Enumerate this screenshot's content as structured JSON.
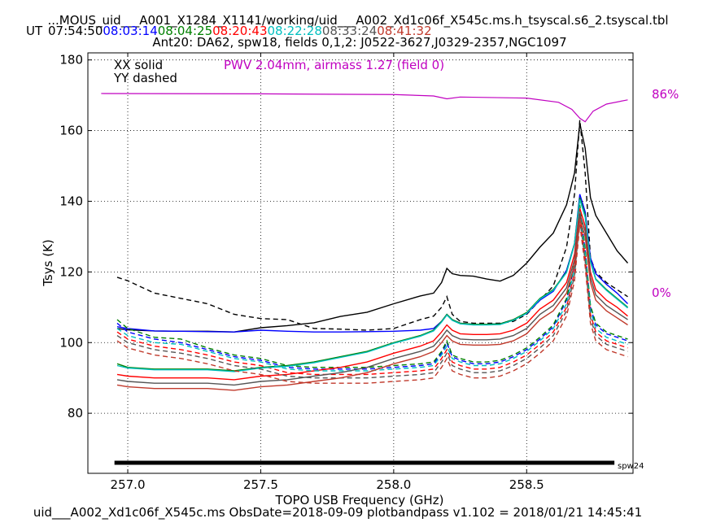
{
  "header": {
    "title": "...MOUS_uid___A001_X1284_X1141/working/uid___A002_Xd1c06f_X545c.ms.h_tsyscal.s6_2.tsyscal.tbl",
    "ut_label": "UT",
    "times": [
      {
        "text": "07:54:50",
        "color": "#000000"
      },
      {
        "text": "08:03:14",
        "color": "#0000ff"
      },
      {
        "text": "08:04:25",
        "color": "#008000"
      },
      {
        "text": "08:20:43",
        "color": "#ff0000"
      },
      {
        "text": "08:22:28",
        "color": "#00bfbf"
      },
      {
        "text": "08:33:24",
        "color": "#555555"
      },
      {
        "text": "08:41:32",
        "color": "#c0392b"
      }
    ],
    "subtitle": "Ant20: DA62,  spw18,  fields 0,1,2: J0522-3627,J0329-2357,NGC1097"
  },
  "footer": "uid___A002_Xd1c06f_X545c.ms  ObsDate=2018-09-09   plotbandpass v1.102 = 2018/01/21 14:45:41",
  "chart_data": {
    "type": "line",
    "xlabel": "TOPO USB Frequency (GHz)",
    "ylabel": "Tsys (K)",
    "xlim": [
      256.85,
      258.9
    ],
    "ylim": [
      63,
      182
    ],
    "xticks": [
      257.0,
      257.5,
      258.0,
      258.5
    ],
    "xtick_labels": [
      "257.0",
      "257.5",
      "258.0",
      "258.5"
    ],
    "yticks": [
      80,
      100,
      120,
      140,
      160,
      180
    ],
    "ytick_labels": [
      "80",
      "100",
      "120",
      "140",
      "160",
      "180"
    ],
    "grid": true,
    "legend": {
      "solid": "XX solid",
      "dashed": "YY dashed"
    },
    "pwv": {
      "label": "PWV 2.04mm, airmass 1.27 (field 0)",
      "color": "#c000c0",
      "right_labels": [
        "86%",
        "0%"
      ],
      "x": [
        256.9,
        257.5,
        258.0,
        258.15,
        258.2,
        258.25,
        258.5,
        258.62,
        258.67,
        258.7,
        258.72,
        258.75,
        258.8,
        258.88
      ],
      "y": [
        170.5,
        170.4,
        170.2,
        169.8,
        169.0,
        169.5,
        169.2,
        168.0,
        166.0,
        163.5,
        162.5,
        165.5,
        167.5,
        168.7
      ]
    },
    "spw_bar": {
      "label": "spw24",
      "x_start": 256.95,
      "x_end": 258.83,
      "y": 66.0
    },
    "x": [
      256.96,
      257.0,
      257.1,
      257.2,
      257.3,
      257.4,
      257.5,
      257.6,
      257.7,
      257.8,
      257.9,
      258.0,
      258.1,
      258.15,
      258.18,
      258.2,
      258.22,
      258.25,
      258.3,
      258.35,
      258.4,
      258.45,
      258.5,
      258.55,
      258.6,
      258.65,
      258.68,
      258.7,
      258.72,
      258.74,
      258.76,
      258.8,
      258.84,
      258.88
    ],
    "series": [
      {
        "color": "#000000",
        "dash": false,
        "values": [
          104.0,
          103.6,
          103.3,
          103.2,
          103.2,
          103.0,
          104.2,
          104.8,
          105.6,
          107.4,
          108.6,
          111.0,
          113.2,
          114.0,
          117.0,
          121.0,
          119.5,
          119.0,
          118.8,
          118.0,
          117.4,
          119.0,
          122.5,
          127.0,
          131.0,
          139.0,
          148.0,
          162.0,
          155.0,
          141.0,
          136.0,
          131.0,
          126.0,
          122.5
        ]
      },
      {
        "color": "#000000",
        "dash": true,
        "values": [
          118.5,
          117.5,
          114.0,
          112.5,
          111.0,
          108.0,
          106.8,
          106.5,
          104.0,
          103.8,
          103.5,
          104.0,
          106.5,
          107.5,
          110.0,
          113.0,
          108.0,
          106.0,
          105.5,
          105.5,
          105.5,
          106.0,
          108.0,
          112.0,
          116.0,
          127.0,
          142.0,
          163.0,
          148.0,
          124.0,
          120.0,
          117.0,
          115.0,
          113.0
        ]
      },
      {
        "color": "#0000ff",
        "dash": false,
        "values": [
          104.5,
          104.0,
          103.3,
          103.2,
          103.1,
          103.0,
          103.5,
          103.2,
          103.0,
          103.0,
          103.1,
          103.2,
          103.5,
          104.0,
          106.0,
          108.0,
          106.5,
          105.5,
          105.2,
          105.2,
          105.3,
          106.5,
          108.2,
          112.0,
          114.5,
          120.5,
          128.0,
          142.0,
          137.0,
          124.0,
          119.5,
          116.5,
          114.0,
          111.0
        ]
      },
      {
        "color": "#0000ff",
        "dash": true,
        "values": [
          105.5,
          103.0,
          101.0,
          100.0,
          98.0,
          96.0,
          95.0,
          93.0,
          92.5,
          92.5,
          92.5,
          93.0,
          93.5,
          94.0,
          97.0,
          100.0,
          96.0,
          95.0,
          94.0,
          94.0,
          94.5,
          96.0,
          98.0,
          101.0,
          104.5,
          112.0,
          122.0,
          138.0,
          126.0,
          110.0,
          105.0,
          102.5,
          101.5,
          100.5
        ]
      },
      {
        "color": "#008000",
        "dash": false,
        "values": [
          94.0,
          93.0,
          92.5,
          92.5,
          92.5,
          92.0,
          93.0,
          93.5,
          94.5,
          96.0,
          97.5,
          100.0,
          102.0,
          103.5,
          106.0,
          108.0,
          106.5,
          105.5,
          105.2,
          105.2,
          105.3,
          106.5,
          108.5,
          112.5,
          115.0,
          120.0,
          128.0,
          141.0,
          136.0,
          123.0,
          118.0,
          115.0,
          112.5,
          110.0
        ]
      },
      {
        "color": "#008000",
        "dash": true,
        "values": [
          106.5,
          104.0,
          101.5,
          101.0,
          98.5,
          96.5,
          95.5,
          93.5,
          93.0,
          93.0,
          93.0,
          93.5,
          94.0,
          94.5,
          97.5,
          100.5,
          96.5,
          95.5,
          94.5,
          94.5,
          95.0,
          96.5,
          98.5,
          101.5,
          105.0,
          112.5,
          122.5,
          139.0,
          126.5,
          110.5,
          105.5,
          103.0,
          102.0,
          101.0
        ]
      },
      {
        "color": "#ff0000",
        "dash": false,
        "values": [
          91.0,
          90.5,
          90.0,
          90.0,
          90.0,
          89.5,
          90.5,
          91.0,
          92.0,
          93.0,
          94.5,
          97.0,
          99.0,
          100.5,
          103.0,
          105.0,
          103.5,
          102.5,
          102.3,
          102.3,
          102.5,
          103.5,
          105.5,
          109.5,
          112.0,
          117.0,
          125.0,
          138.0,
          133.0,
          120.0,
          115.0,
          112.0,
          110.0,
          107.5
        ]
      },
      {
        "color": "#ff0000",
        "dash": true,
        "values": [
          103.0,
          101.0,
          99.0,
          98.0,
          96.5,
          94.5,
          93.5,
          91.5,
          91.0,
          91.0,
          91.0,
          91.5,
          92.0,
          92.5,
          95.5,
          98.0,
          94.5,
          93.5,
          92.5,
          92.5,
          93.0,
          94.5,
          96.5,
          99.5,
          103.0,
          110.0,
          120.0,
          136.0,
          124.0,
          108.0,
          103.0,
          100.5,
          99.5,
          98.5
        ]
      },
      {
        "color": "#00bfbf",
        "dash": false,
        "values": [
          93.5,
          92.8,
          92.3,
          92.3,
          92.3,
          91.8,
          92.8,
          93.3,
          94.3,
          95.8,
          97.3,
          99.8,
          101.8,
          103.3,
          105.8,
          107.8,
          106.3,
          105.3,
          105.0,
          105.0,
          105.1,
          106.3,
          108.3,
          112.3,
          114.8,
          119.8,
          127.8,
          140.5,
          135.5,
          122.8,
          117.8,
          114.8,
          112.3,
          109.8
        ]
      },
      {
        "color": "#00bfbf",
        "dash": true,
        "values": [
          104.0,
          102.0,
          100.0,
          99.5,
          97.5,
          95.5,
          94.5,
          92.5,
          92.0,
          92.0,
          92.0,
          92.5,
          93.0,
          93.5,
          96.5,
          99.0,
          95.5,
          94.5,
          93.5,
          93.5,
          94.0,
          95.5,
          97.5,
          100.5,
          104.0,
          111.0,
          121.0,
          137.0,
          125.0,
          109.0,
          104.0,
          101.5,
          100.5,
          99.5
        ]
      },
      {
        "color": "#555555",
        "dash": false,
        "values": [
          89.5,
          89.0,
          88.5,
          88.5,
          88.5,
          88.0,
          89.0,
          89.5,
          90.5,
          91.5,
          93.0,
          95.5,
          97.5,
          99.0,
          101.5,
          103.5,
          102.0,
          101.0,
          100.8,
          100.8,
          101.0,
          102.0,
          104.0,
          108.0,
          110.5,
          115.5,
          123.5,
          136.5,
          131.5,
          118.5,
          113.5,
          110.5,
          108.5,
          106.5
        ]
      },
      {
        "color": "#555555",
        "dash": true,
        "values": [
          102.0,
          100.0,
          98.0,
          97.0,
          95.5,
          93.5,
          92.5,
          90.5,
          90.0,
          90.0,
          90.0,
          90.5,
          91.0,
          91.5,
          94.5,
          97.0,
          93.5,
          92.5,
          91.5,
          91.5,
          92.0,
          93.5,
          95.5,
          98.5,
          102.0,
          109.0,
          119.0,
          135.0,
          123.0,
          107.0,
          102.0,
          99.5,
          98.5,
          97.5
        ]
      },
      {
        "color": "#c0392b",
        "dash": false,
        "values": [
          88.0,
          87.5,
          87.0,
          87.0,
          87.0,
          86.5,
          87.5,
          88.0,
          89.0,
          90.0,
          91.5,
          94.0,
          96.0,
          97.5,
          100.0,
          102.0,
          100.5,
          99.5,
          99.3,
          99.3,
          99.5,
          100.5,
          102.5,
          106.5,
          109.0,
          114.0,
          122.0,
          135.0,
          130.0,
          117.0,
          112.0,
          109.0,
          107.0,
          105.0
        ]
      },
      {
        "color": "#c0392b",
        "dash": true,
        "values": [
          100.5,
          98.5,
          96.5,
          95.5,
          94.0,
          92.0,
          91.0,
          89.0,
          88.5,
          88.5,
          88.5,
          89.0,
          89.5,
          90.0,
          93.0,
          95.5,
          92.0,
          91.0,
          90.0,
          90.0,
          90.5,
          92.0,
          94.0,
          97.0,
          100.5,
          107.5,
          117.5,
          133.5,
          121.5,
          105.5,
          100.5,
          98.0,
          97.0,
          96.0
        ]
      }
    ]
  }
}
